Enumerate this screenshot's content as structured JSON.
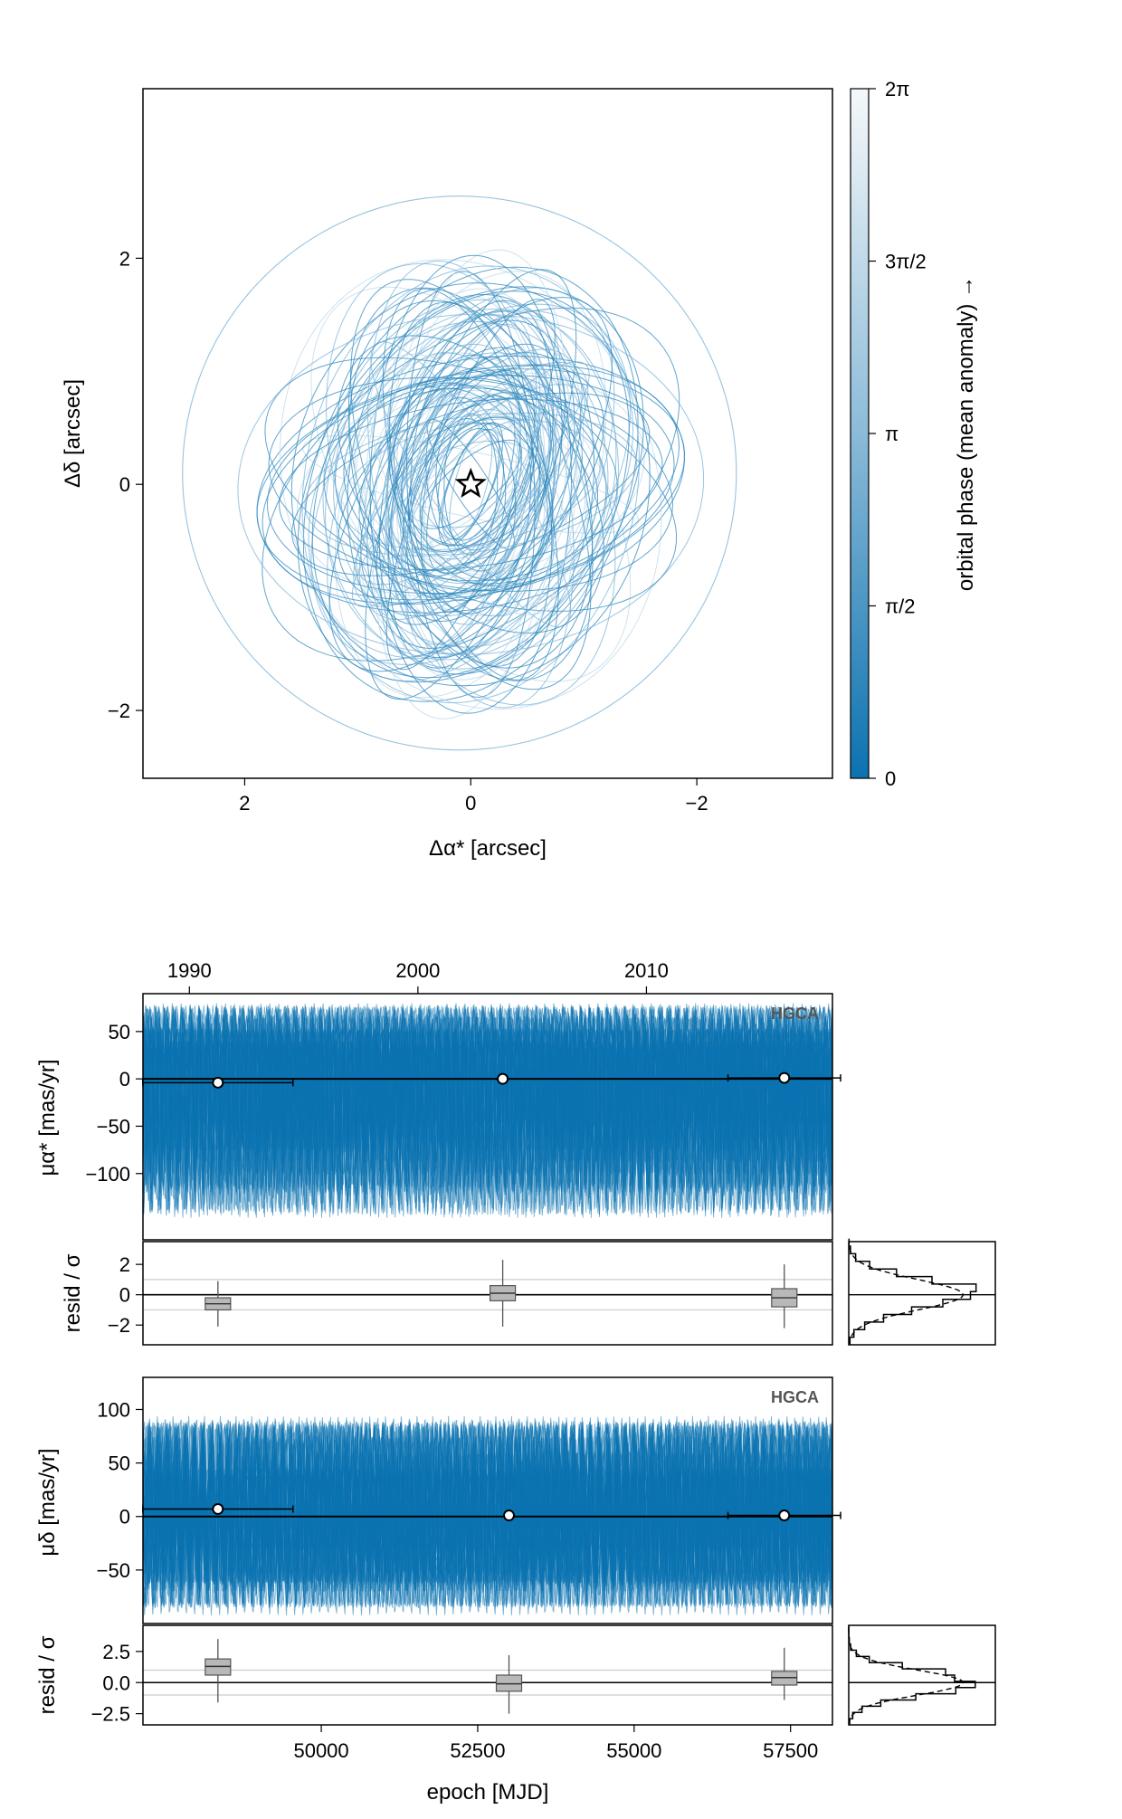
{
  "chart_data": [
    {
      "id": "orbit_sky",
      "type": "line",
      "xlabel": "Δα* [arcsec]",
      "ylabel": "Δδ [arcsec]",
      "xlim": [
        2.9,
        -3.2
      ],
      "ylim": [
        -2.6,
        3.5
      ],
      "x_reversed": true,
      "xticks": [
        "2",
        "0",
        "−2"
      ],
      "yticks": [
        "−2",
        "0",
        "2"
      ],
      "marker": "star at origin",
      "series_description": "orbit posterior draws centered on star",
      "colorbar": {
        "label": "orbital phase (mean anomaly) →",
        "ticks": [
          "0",
          "π/2",
          "π",
          "3π/2",
          "2π"
        ],
        "range": [
          0,
          6.283
        ],
        "color_low": "#0b72b0",
        "color_high": "#f5f8fa"
      }
    },
    {
      "id": "pm_ra",
      "type": "line",
      "ylabel": "μα* [mas/yr]",
      "tag": "HGCA",
      "top_axis_ticks": [
        "1990",
        "2000",
        "2010"
      ],
      "yticks": [
        "50",
        "0",
        "−50",
        "−100"
      ],
      "ylim": [
        -170,
        90
      ],
      "points": [
        {
          "x": 48348,
          "y": -4,
          "xerr": 1200
        },
        {
          "x": 52900,
          "y": 0,
          "xerr": 0
        },
        {
          "x": 57400,
          "y": 1,
          "xerr": 900
        }
      ],
      "line_color": "#0b72b0"
    },
    {
      "id": "pm_ra_resid",
      "type": "box",
      "ylabel": "resid / σ",
      "yticks": [
        "2",
        "0",
        "−2"
      ],
      "ylim": [
        -3.3,
        3.5
      ],
      "boxes": [
        {
          "x": 48348,
          "q1": -1.0,
          "median": -0.6,
          "q3": -0.2,
          "min": -2.1,
          "max": 0.9
        },
        {
          "x": 52900,
          "q1": -0.4,
          "median": 0.1,
          "q3": 0.6,
          "min": -2.1,
          "max": 2.3
        },
        {
          "x": 57400,
          "q1": -0.8,
          "median": -0.2,
          "q3": 0.4,
          "min": -2.2,
          "max": 2.0
        }
      ]
    },
    {
      "id": "pm_dec",
      "type": "line",
      "ylabel": "μδ [mas/yr]",
      "tag": "HGCA",
      "yticks": [
        "100",
        "50",
        "0",
        "−50"
      ],
      "ylim": [
        -100,
        130
      ],
      "points": [
        {
          "x": 48348,
          "y": 7,
          "xerr": 1200
        },
        {
          "x": 53000,
          "y": 1,
          "xerr": 0
        },
        {
          "x": 57400,
          "y": 1,
          "xerr": 900
        }
      ],
      "line_color": "#0b72b0"
    },
    {
      "id": "pm_dec_resid",
      "type": "box",
      "ylabel": "resid / σ",
      "xlabel": "epoch [MJD]",
      "yticks": [
        "2.5",
        "0.0",
        "−2.5"
      ],
      "xticks": [
        "50000",
        "52500",
        "55000",
        "57500"
      ],
      "ylim": [
        -3.4,
        4.6
      ],
      "boxes": [
        {
          "x": 48348,
          "q1": 0.6,
          "median": 1.3,
          "q3": 1.9,
          "min": -1.6,
          "max": 3.5
        },
        {
          "x": 53000,
          "q1": -0.7,
          "median": -0.1,
          "q3": 0.6,
          "min": -2.5,
          "max": 2.2
        },
        {
          "x": 57400,
          "q1": -0.2,
          "median": 0.4,
          "q3": 0.9,
          "min": -1.4,
          "max": 2.8
        }
      ]
    }
  ],
  "shared_x": {
    "mjd_range": [
      47150,
      58170
    ]
  },
  "colors": {
    "draws": "#0b72b0",
    "box_fill": "#b8b8b8",
    "grid": "#cccccc"
  }
}
